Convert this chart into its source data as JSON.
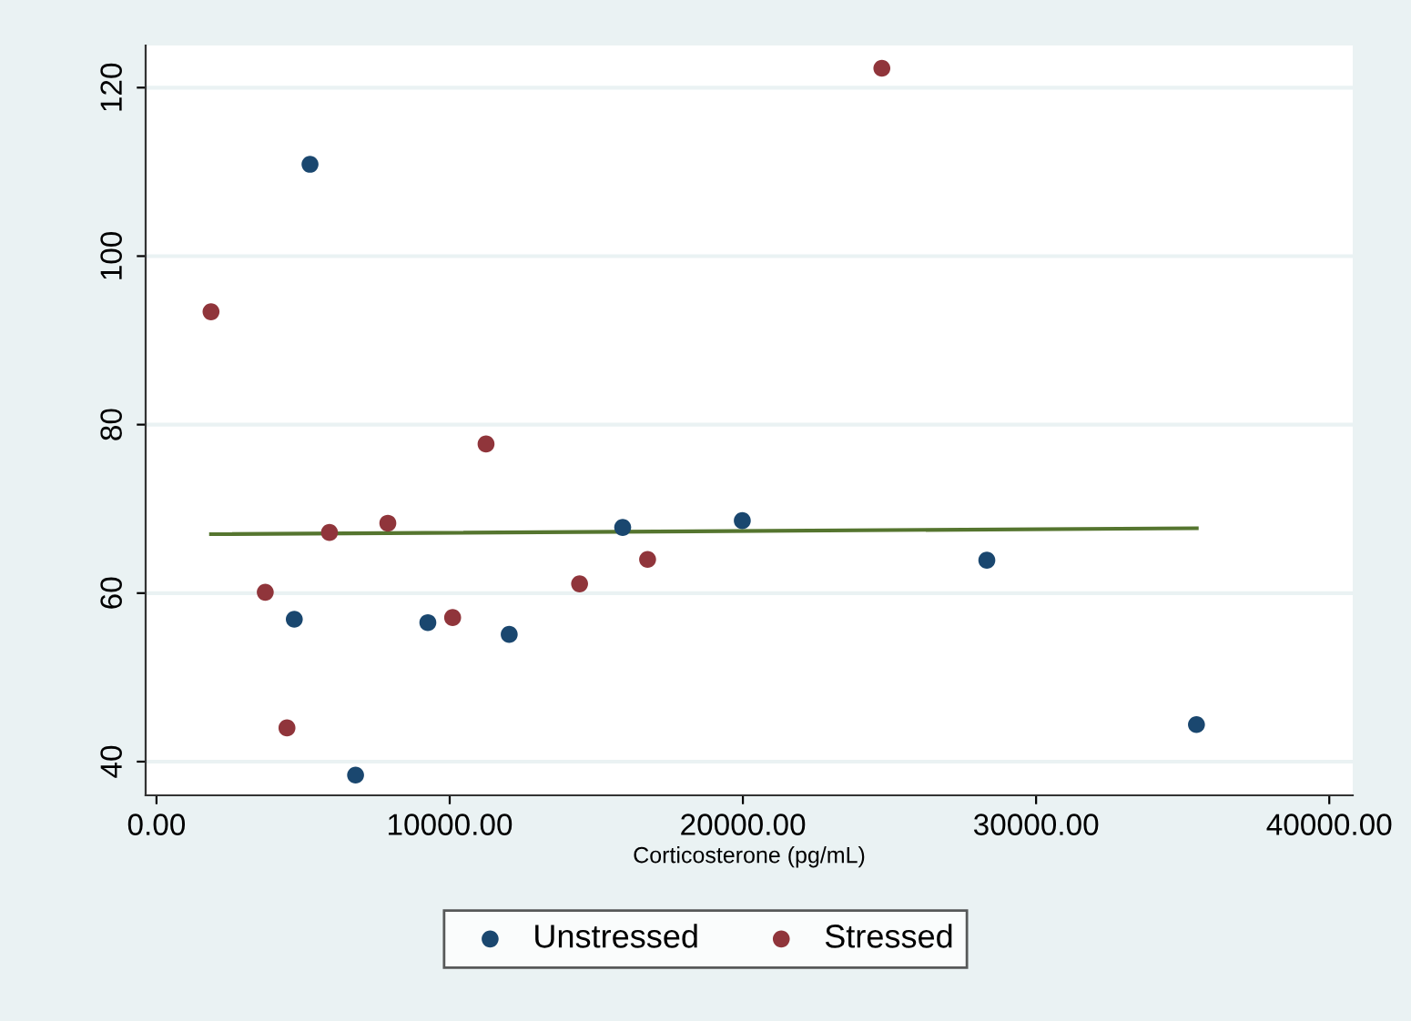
{
  "chart_data": {
    "type": "scatter",
    "xlabel": "Corticosterone (pg/mL)",
    "series": [
      {
        "name": "Unstressed",
        "color": "#1a476f",
        "marker": "circle",
        "x": [
          5236,
          4700,
          6790,
          9255,
          12030,
          15900,
          19980,
          28320,
          35470
        ],
        "values": [
          110.9,
          56.9,
          38.4,
          56.5,
          55.1,
          67.8,
          68.6,
          63.9,
          44.4
        ]
      },
      {
        "name": "Stressed",
        "color": "#90353b",
        "marker": "circle",
        "x": [
          1860,
          3710,
          4450,
          5900,
          7890,
          10100,
          11240,
          14430,
          16750,
          24740
        ],
        "values": [
          93.4,
          60.1,
          44.0,
          67.2,
          68.3,
          57.1,
          77.7,
          61.1,
          64.0,
          122.3
        ]
      },
      {
        "type": "line",
        "color": "#55752f",
        "x": [
          1860,
          35480
        ],
        "values": [
          67.0,
          67.7
        ]
      }
    ],
    "xlim": [
      -370,
      40800
    ],
    "ylim": [
      36,
      125
    ],
    "xticks": [
      {
        "value": 0,
        "label": "0.00"
      },
      {
        "value": 10000,
        "label": "10000.00"
      },
      {
        "value": 20000,
        "label": "20000.00"
      },
      {
        "value": 30000,
        "label": "30000.00"
      },
      {
        "value": 40000,
        "label": "40000.00"
      }
    ],
    "yticks": [
      40,
      60,
      80,
      100,
      120
    ],
    "grid": "y",
    "legend": "bottom"
  }
}
